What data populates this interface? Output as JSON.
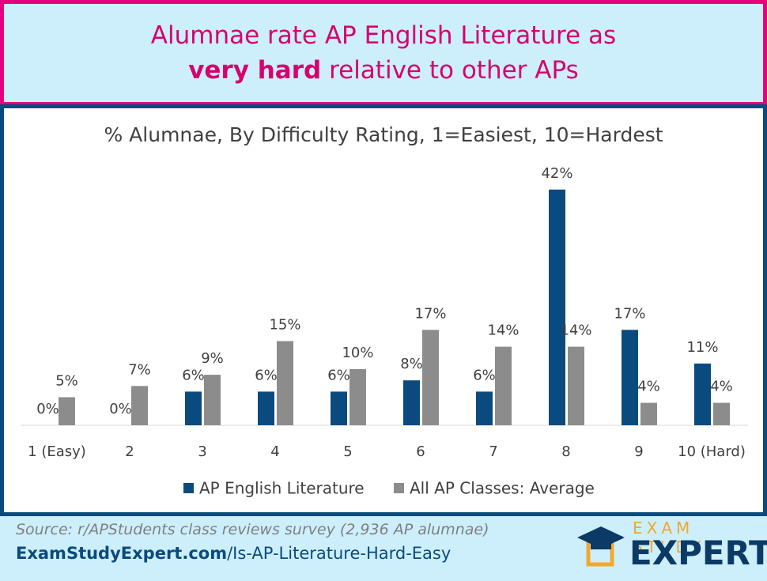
{
  "header": {
    "title_line1": "Alumnae rate AP English Literature as",
    "title_bold": "very hard",
    "title_rest": "relative to other APs"
  },
  "chart_data": {
    "type": "bar",
    "title": "% Alumnae, By Difficulty Rating, 1=Easiest, 10=Hardest",
    "categories": [
      "1 (Easy)",
      "2",
      "3",
      "4",
      "5",
      "6",
      "7",
      "8",
      "9",
      "10 (Hard)"
    ],
    "series": [
      {
        "name": "AP English Literature",
        "color": "#0b4a7e",
        "values": [
          0,
          0,
          6,
          6,
          6,
          8,
          6,
          42,
          17,
          11
        ],
        "value_labels": [
          "0%",
          "0%",
          "6%",
          "6%",
          "6%",
          "8%",
          "6%",
          "42%",
          "17%",
          "11%"
        ]
      },
      {
        "name": "All AP Classes: Average",
        "color": "#8c8c8c",
        "values": [
          5,
          7,
          9,
          15,
          10,
          17,
          14,
          14,
          4,
          4
        ],
        "value_labels": [
          "5%",
          "7%",
          "9%",
          "15%",
          "10%",
          "17%",
          "14%",
          "14%",
          "4%",
          "4%"
        ]
      }
    ]
  },
  "footer": {
    "source": "Source: r/APStudents class reviews survey (2,936 AP alumnae)",
    "link_domain": "ExamStudyExpert.com",
    "link_path": "/Is-AP-Literature-Hard-Easy",
    "logo_top": "EXAM STUDY",
    "logo_bottom": "EXPERT"
  }
}
